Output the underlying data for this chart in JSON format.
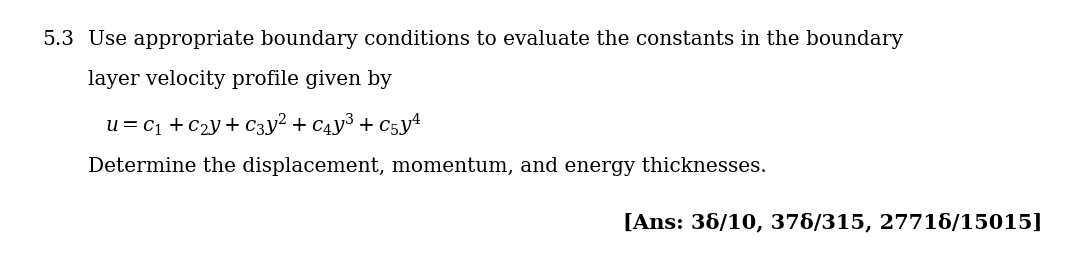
{
  "background_color": "#ffffff",
  "line1_num": "5.3",
  "line1_text": "Use appropriate boundary conditions to evaluate the constants in the boundary",
  "line2": "layer velocity profile given by",
  "equation": "$u = c_1 + c_2 y + c_3 y^2 + c_4 y^3 + c_5 y^4$",
  "line3": "Determine the displacement, momentum, and energy thicknesses.",
  "answer": "[Ans: 3δ/10, 37δ/315, 2771δ/15015]",
  "text_color": "#000000",
  "font_size_main": 14.5,
  "font_size_ans": 15.0
}
